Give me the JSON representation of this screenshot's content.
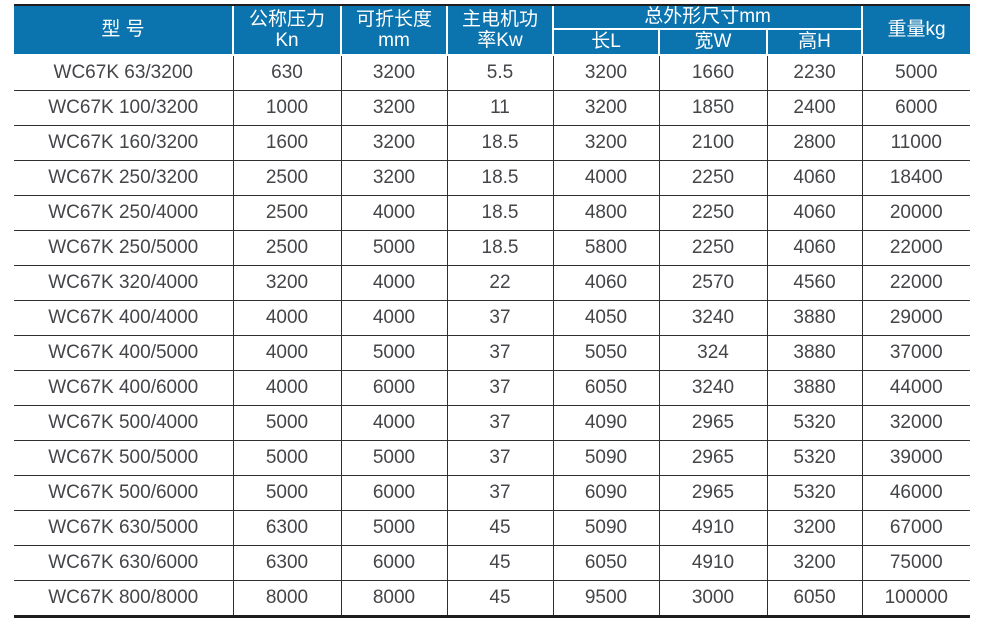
{
  "table": {
    "header": {
      "model": "型 号",
      "pressure": {
        "line1": "公称压力",
        "line2": "Kn"
      },
      "fold_length": {
        "line1": "可折长度",
        "line2": "mm"
      },
      "motor_power": {
        "line1": "主电机功",
        "line2": "率Kw"
      },
      "overall_dims_group": "总外形尺寸mm",
      "dim_length": "长L",
      "dim_width": "宽W",
      "dim_height": "高H",
      "weight": "重量kg"
    },
    "column_keys": [
      "model",
      "nominal-pressure-kn",
      "fold-length-mm",
      "motor-power-kw",
      "length-l",
      "width-w",
      "height-h",
      "weight-kg"
    ],
    "rows": [
      [
        "WC67K 63/3200",
        "630",
        "3200",
        "5.5",
        "3200",
        "1660",
        "2230",
        "5000"
      ],
      [
        "WC67K 100/3200",
        "1000",
        "3200",
        "11",
        "3200",
        "1850",
        "2400",
        "6000"
      ],
      [
        "WC67K 160/3200",
        "1600",
        "3200",
        "18.5",
        "3200",
        "2100",
        "2800",
        "11000"
      ],
      [
        "WC67K 250/3200",
        "2500",
        "3200",
        "18.5",
        "4000",
        "2250",
        "4060",
        "18400"
      ],
      [
        "WC67K 250/4000",
        "2500",
        "4000",
        "18.5",
        "4800",
        "2250",
        "4060",
        "20000"
      ],
      [
        "WC67K 250/5000",
        "2500",
        "5000",
        "18.5",
        "5800",
        "2250",
        "4060",
        "22000"
      ],
      [
        "WC67K 320/4000",
        "3200",
        "4000",
        "22",
        "4060",
        "2570",
        "4560",
        "22000"
      ],
      [
        "WC67K 400/4000",
        "4000",
        "4000",
        "37",
        "4050",
        "3240",
        "3880",
        "29000"
      ],
      [
        "WC67K 400/5000",
        "4000",
        "5000",
        "37",
        "5050",
        "324",
        "3880",
        "37000"
      ],
      [
        "WC67K 400/6000",
        "4000",
        "6000",
        "37",
        "6050",
        "3240",
        "3880",
        "44000"
      ],
      [
        "WC67K 500/4000",
        "5000",
        "4000",
        "37",
        "4090",
        "2965",
        "5320",
        "32000"
      ],
      [
        "WC67K 500/5000",
        "5000",
        "5000",
        "37",
        "5090",
        "2965",
        "5320",
        "39000"
      ],
      [
        "WC67K 500/6000",
        "5000",
        "6000",
        "37",
        "6090",
        "2965",
        "5320",
        "46000"
      ],
      [
        "WC67K 630/5000",
        "6300",
        "5000",
        "45",
        "5090",
        "4910",
        "3200",
        "67000"
      ],
      [
        "WC67K 630/6000",
        "6300",
        "6000",
        "45",
        "6050",
        "4910",
        "3200",
        "75000"
      ],
      [
        "WC67K 800/8000",
        "8000",
        "8000",
        "45",
        "9500",
        "3000",
        "6050",
        "100000"
      ]
    ]
  },
  "colors": {
    "header_bg": "#0b73ad",
    "header_text": "#ffffff",
    "body_text": "#434549",
    "grid_line": "#303030",
    "frame_line": "#1d1d1f"
  }
}
